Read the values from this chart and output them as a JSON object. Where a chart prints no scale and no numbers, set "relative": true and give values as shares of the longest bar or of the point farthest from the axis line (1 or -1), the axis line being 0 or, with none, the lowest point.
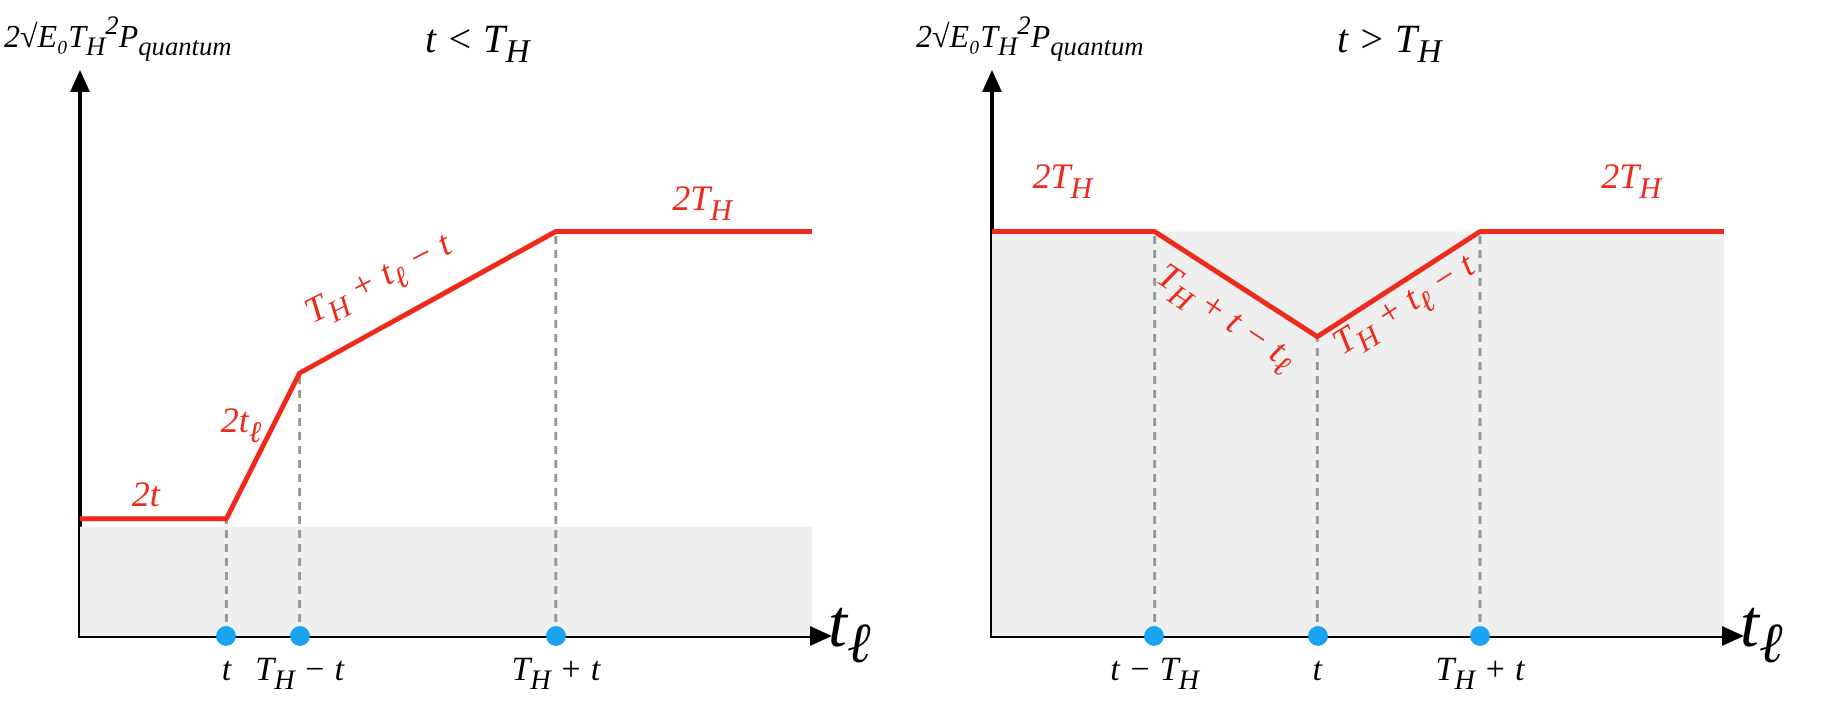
{
  "chart_data": [
    {
      "type": "line",
      "relative": true,
      "title": "t < T$_{H}$",
      "ylabel": "2√E₀T$_{H}$$^{2}$P$_{quantum}$",
      "xlabel": "t$_{ℓ}$",
      "tick_labels": "x",
      "categories": [
        null,
        null,
        null,
        null,
        "t",
        null,
        "T$_{H}$ − t",
        null,
        null,
        null,
        null,
        null,
        null,
        "T$_{H}$ + t",
        null,
        null,
        null,
        null,
        null,
        null,
        null
      ],
      "series": [
        {
          "color": "#ee2a1a",
          "values": [
            0.29,
            0.29,
            0.29,
            0.29,
            0.29,
            0.47,
            0.65,
            0.7,
            0.75,
            0.8,
            0.85,
            0.9,
            0.95,
            1,
            1,
            1,
            1,
            1,
            1,
            1,
            1
          ]
        }
      ],
      "bands": [
        {
          "axis": "y",
          "from": 0,
          "to": 0.27,
          "color": "#efefef"
        }
      ],
      "ref_lines": [
        {
          "axis": "x",
          "value": "t",
          "color": "#999999",
          "line_style": "dashed"
        },
        {
          "axis": "x",
          "value": "T$_{H}$ − t",
          "color": "#999999",
          "line_style": "dashed"
        },
        {
          "axis": "x",
          "value": "T$_{H}$ + t",
          "color": "#999999",
          "line_style": "dashed"
        }
      ],
      "annotations": [
        "2t",
        "2t$_{ℓ}$",
        "T$_{H}$ + t$_{ℓ}$ − t",
        "2T$_{H}$"
      ]
    },
    {
      "type": "line",
      "relative": true,
      "title": "t > T$_{H}$",
      "ylabel": "2√E₀T$_{H}$$^{2}$P$_{quantum}$",
      "xlabel": "t$_{ℓ}$",
      "tick_labels": "x",
      "categories": [
        null,
        null,
        null,
        null,
        "t − T$_{H}$",
        null,
        null,
        null,
        "t",
        null,
        null,
        null,
        "T$_{H}$ + t",
        null,
        null,
        null,
        null,
        null,
        null
      ],
      "series": [
        {
          "color": "#ee2a1a",
          "values": [
            1,
            1,
            1,
            1,
            1,
            0.935,
            0.87,
            0.805,
            0.74,
            0.805,
            0.87,
            0.935,
            1,
            1,
            1,
            1,
            1,
            1,
            1
          ]
        }
      ],
      "bands": [
        {
          "axis": "y",
          "from": 0,
          "to": 1,
          "color": "#efefef"
        }
      ],
      "ref_lines": [
        {
          "axis": "x",
          "value": "t − T$_{H}$",
          "color": "#999999",
          "line_style": "dashed"
        },
        {
          "axis": "x",
          "value": "t",
          "color": "#999999",
          "line_style": "dashed"
        },
        {
          "axis": "x",
          "value": "T$_{H}$ + t",
          "color": "#999999",
          "line_style": "dashed"
        }
      ],
      "annotations": [
        "2T$_{H}$",
        "T$_{H}$ + t − t$_{ℓ}$",
        "T$_{H}$ + t$_{ℓ}$ − t",
        "2T$_{H}$"
      ]
    }
  ]
}
